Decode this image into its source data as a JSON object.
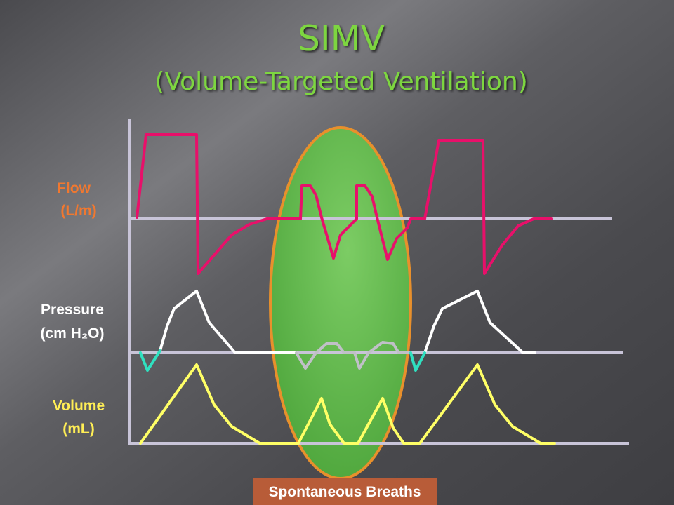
{
  "title": {
    "main": "SIMV",
    "sub": "(Volume-Targeted Ventilation)"
  },
  "labels": {
    "flow": {
      "name": "Flow",
      "unit": "(L/m)"
    },
    "pressure": {
      "name": "Pressure",
      "unit": "(cm H₂O)"
    },
    "volume": {
      "name": "Volume",
      "unit": "(mL)"
    }
  },
  "callout": "Spontaneous Breaths"
}
